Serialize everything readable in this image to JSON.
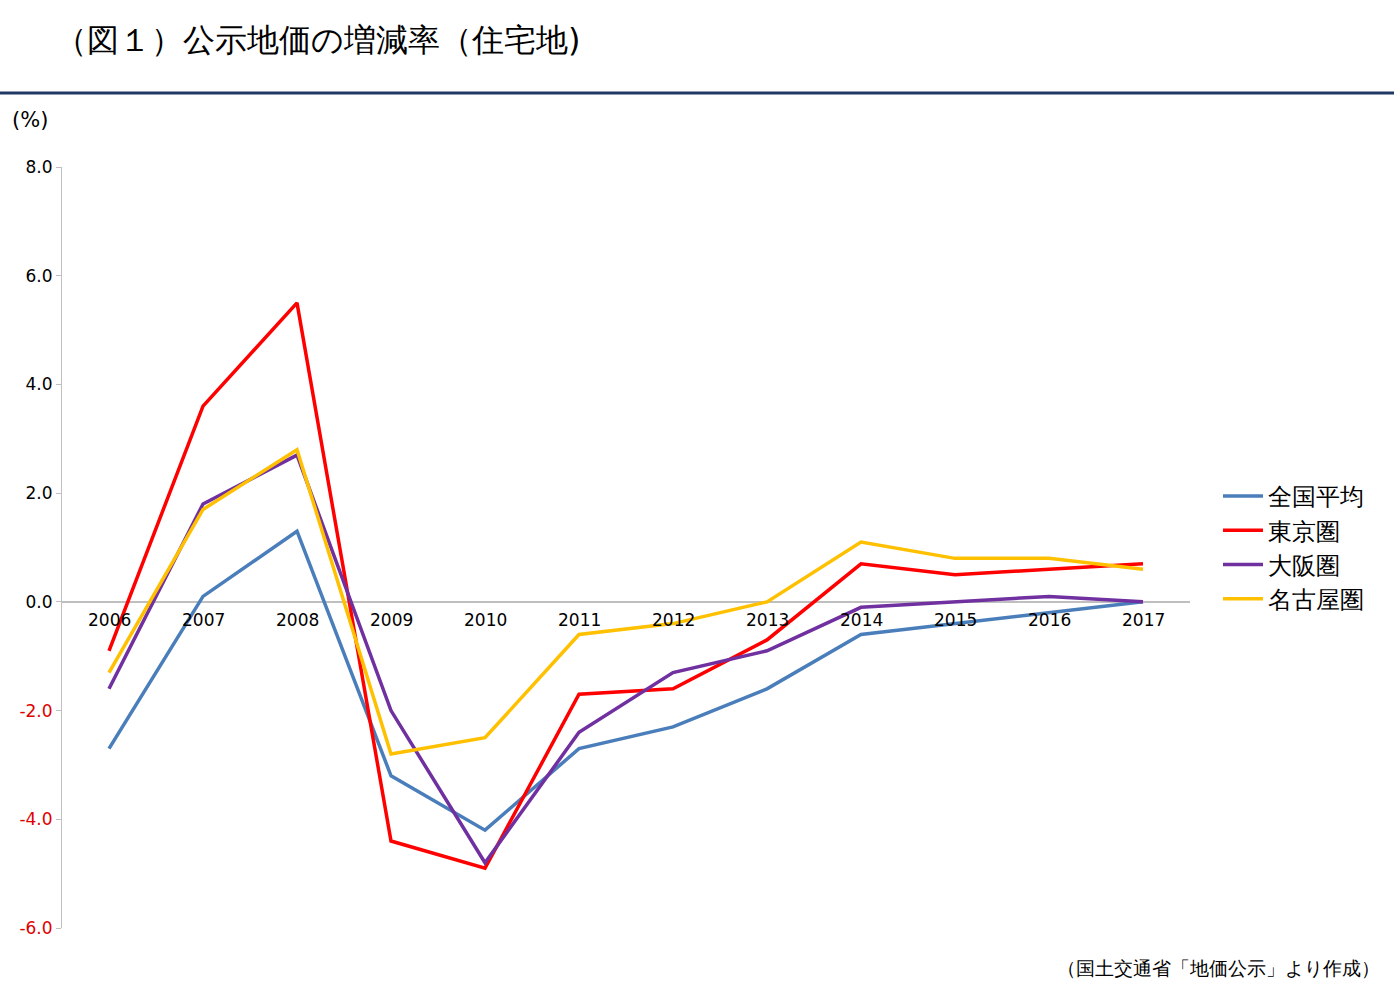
{
  "chart_data": {
    "type": "line",
    "title": "（図１）公示地価の増減率（住宅地)",
    "ylabel": "(%)",
    "annotations": [
      "（国土交通省「地価公示」より作成）"
    ],
    "categories": [
      "2006",
      "2007",
      "2008",
      "2009",
      "2010",
      "2011",
      "2012",
      "2013",
      "2014",
      "2015",
      "2016",
      "2017"
    ],
    "series": [
      {
        "name": "全国平均",
        "color": "#4a7ebb",
        "values": [
          -2.7,
          0.1,
          1.3,
          -3.2,
          -4.2,
          -2.7,
          -2.3,
          -1.6,
          -0.6,
          -0.4,
          -0.2,
          0.0
        ]
      },
      {
        "name": "東京圏",
        "color": "#ff0000",
        "values": [
          -0.9,
          3.6,
          5.5,
          -4.4,
          -4.9,
          -1.7,
          -1.6,
          -0.7,
          0.7,
          0.5,
          0.6,
          0.7
        ]
      },
      {
        "name": "大阪圏",
        "color": "#7030a0",
        "values": [
          -1.6,
          1.8,
          2.7,
          -2.0,
          -4.8,
          -2.4,
          -1.3,
          -0.9,
          -0.1,
          0.0,
          0.1,
          0.0
        ]
      },
      {
        "name": "名古屋圏",
        "color": "#ffc000",
        "values": [
          -1.3,
          1.7,
          2.8,
          -2.8,
          -2.5,
          -0.6,
          -0.4,
          0.0,
          1.1,
          0.8,
          0.8,
          0.6
        ]
      }
    ],
    "ylim": [
      -6,
      8
    ],
    "yticks": [
      {
        "value": -6,
        "label": "-6.0"
      },
      {
        "value": -4,
        "label": "-4.0"
      },
      {
        "value": -2,
        "label": "-2.0"
      },
      {
        "value": 0,
        "label": "0.0"
      },
      {
        "value": 2,
        "label": "2.0"
      },
      {
        "value": 4,
        "label": "4.0"
      },
      {
        "value": 6,
        "label": "6.0"
      },
      {
        "value": 8,
        "label": "8.0"
      }
    ],
    "grid": false,
    "legend": "right"
  }
}
